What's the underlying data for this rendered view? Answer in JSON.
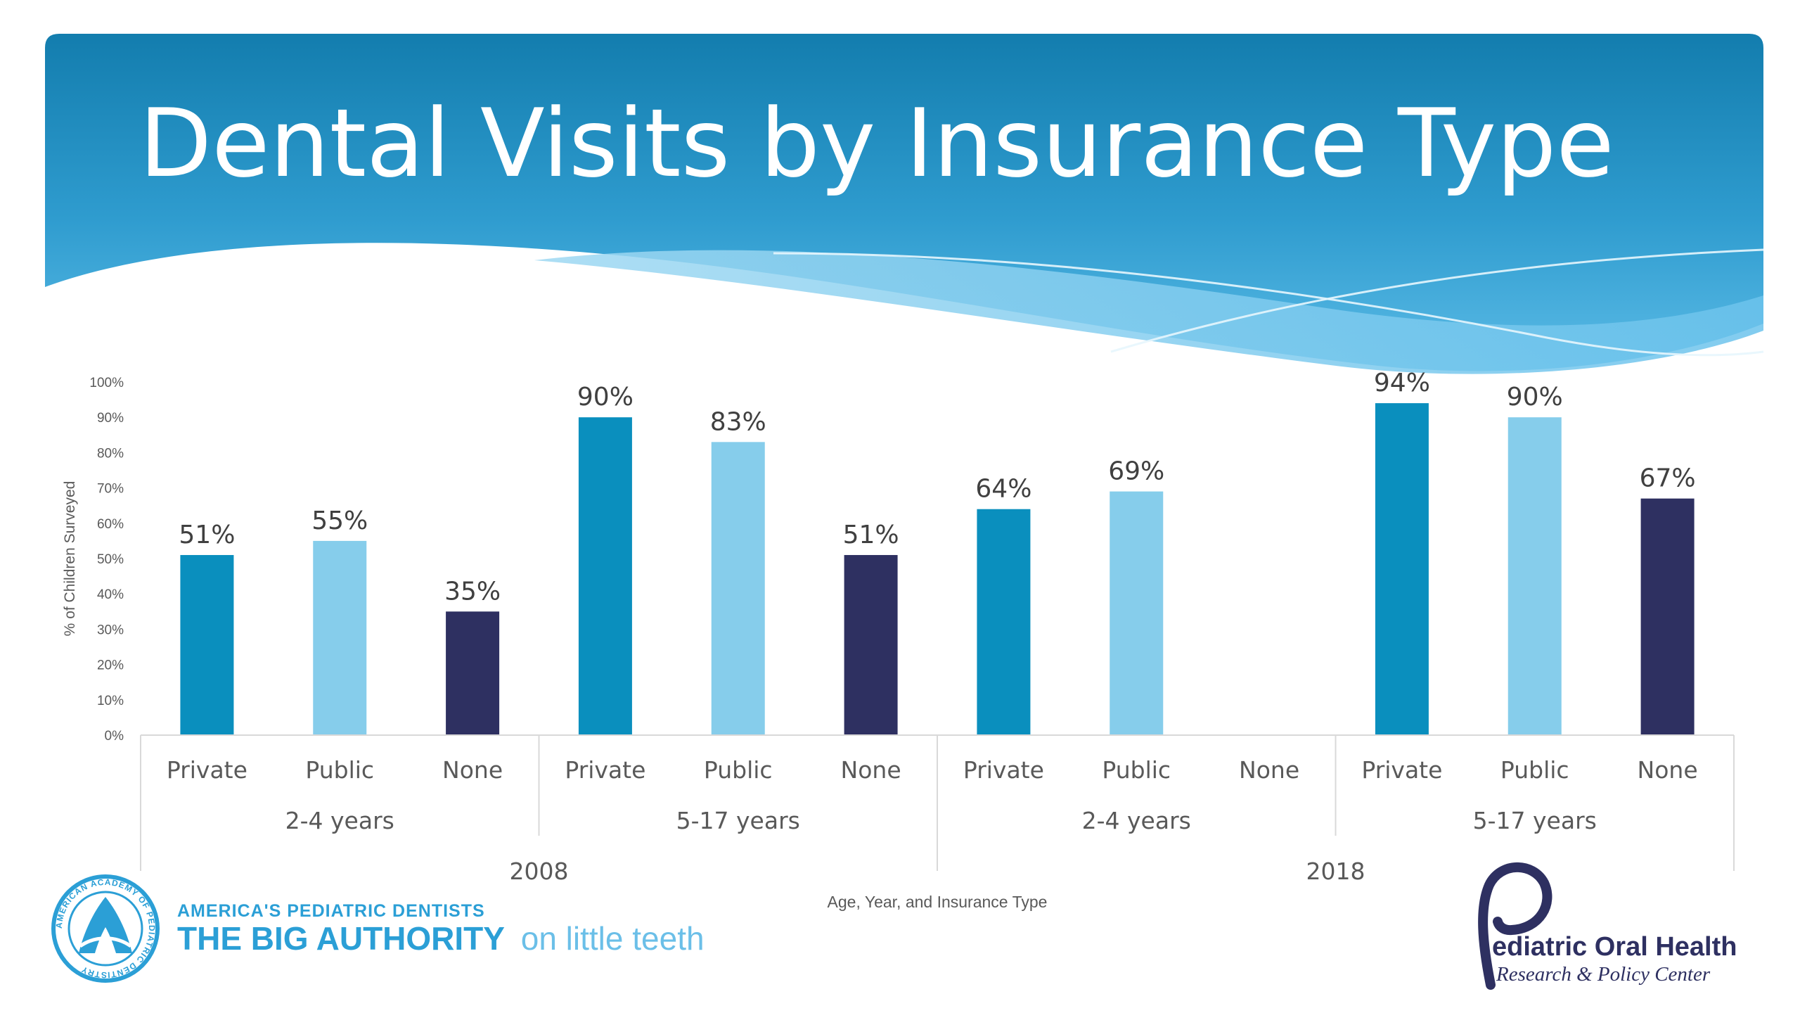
{
  "slide": {
    "title": "Dental Visits by Insurance Type",
    "logo_left": {
      "tagline": "AMERICA'S PEDIATRIC DENTISTS",
      "slogan_bold": "THE BIG AUTHORITY",
      "slogan_light": "on little teeth",
      "seal_text": "AMERICAN ACADEMY OF PEDIATRIC DENTISTRY"
    },
    "logo_right": {
      "line1": "ediatric Oral Health",
      "line2": "Research & Policy Center"
    }
  },
  "colors": {
    "private": "#0A8FBE",
    "public": "#86CDEB",
    "none": "#2E3061",
    "header_top": "#137DAE",
    "header_bottom": "#53B6E2",
    "aapd_blue": "#2B9FD6"
  },
  "chart_data": {
    "type": "bar",
    "ylabel": "% of Children Surveyed",
    "xlabel": "Age, Year, and Insurance Type",
    "ylim": [
      0,
      100
    ],
    "yticks": [
      "0%",
      "10%",
      "20%",
      "30%",
      "40%",
      "50%",
      "60%",
      "70%",
      "80%",
      "90%",
      "100%"
    ],
    "categories": [
      "Private",
      "Public",
      "None",
      "Private",
      "Public",
      "None",
      "Private",
      "Public",
      "None",
      "Private",
      "Public",
      "None"
    ],
    "values": [
      51,
      55,
      35,
      90,
      83,
      51,
      64,
      69,
      null,
      94,
      90,
      67
    ],
    "labels": [
      "51%",
      "55%",
      "35%",
      "90%",
      "83%",
      "51%",
      "64%",
      "69%",
      "",
      "94%",
      "90%",
      "67%"
    ],
    "age_groups": [
      "2-4 years",
      "5-17 years",
      "2-4 years",
      "5-17 years"
    ],
    "years": [
      "2008",
      "2018"
    ],
    "legend": "none"
  }
}
